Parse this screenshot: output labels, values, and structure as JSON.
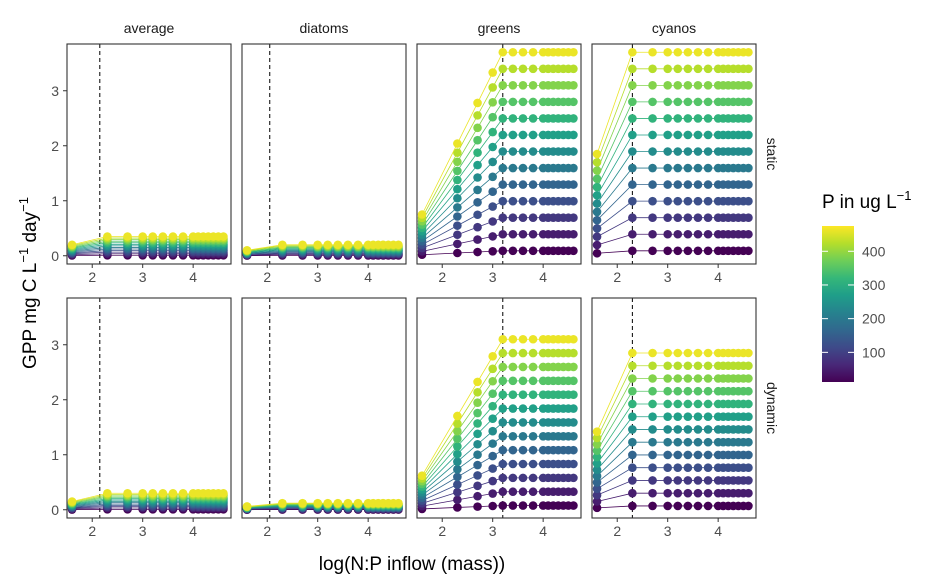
{
  "chart_data": {
    "type": "scatter",
    "xlabel": "log(N:P inflow (mass))",
    "ylabel_parts": [
      "GPP mg C L",
      "−1",
      " day",
      "−1"
    ],
    "columns": [
      "average",
      "diatoms",
      "greens",
      "cyanos"
    ],
    "rows": [
      "static",
      "dynamic"
    ],
    "xlim": [
      1.5,
      4.75
    ],
    "ylim": [
      -0.15,
      3.85
    ],
    "x_ticks": [
      2,
      3,
      4
    ],
    "y_ticks": [
      0,
      1,
      2,
      3
    ],
    "x_values": [
      1.6,
      2.3,
      2.7,
      3.0,
      3.2,
      3.4,
      3.6,
      3.8,
      4.0,
      4.1,
      4.2,
      4.3,
      4.4,
      4.5,
      4.6
    ],
    "p_levels": [
      12,
      49,
      87,
      124,
      162,
      199,
      237,
      274,
      312,
      349,
      387,
      424,
      462
    ],
    "vlines": {
      "average": 2.15,
      "diatoms": 2.05,
      "greens": 3.2,
      "cyanos": 2.3
    },
    "panels": [
      {
        "column": "average",
        "row": "static",
        "kind": "flat",
        "plateau_max": 0.35,
        "start_max": 0.2,
        "knee": 2.3
      },
      {
        "column": "diatoms",
        "row": "static",
        "kind": "flat",
        "plateau_max": 0.2,
        "start_max": 0.1,
        "knee": 2.3
      },
      {
        "column": "greens",
        "row": "static",
        "kind": "rise",
        "plateau_max": 3.7,
        "start_max": 0.75,
        "knee": 3.2
      },
      {
        "column": "cyanos",
        "row": "static",
        "kind": "rise",
        "plateau_max": 3.7,
        "start_max": 1.85,
        "knee": 2.3
      },
      {
        "column": "average",
        "row": "dynamic",
        "kind": "flat",
        "plateau_max": 0.3,
        "start_max": 0.15,
        "knee": 2.3
      },
      {
        "column": "diatoms",
        "row": "dynamic",
        "kind": "flat",
        "plateau_max": 0.12,
        "start_max": 0.06,
        "knee": 2.3
      },
      {
        "column": "greens",
        "row": "dynamic",
        "kind": "rise",
        "plateau_max": 3.1,
        "start_max": 0.62,
        "knee": 3.2
      },
      {
        "column": "cyanos",
        "row": "dynamic",
        "kind": "rise",
        "plateau_max": 2.85,
        "start_max": 1.42,
        "knee": 2.3
      }
    ],
    "legend": {
      "title_parts": [
        "P in ug L",
        "−1"
      ],
      "position": "right",
      "range": [
        12,
        475
      ],
      "ticks": [
        100,
        200,
        300,
        400
      ],
      "colors": [
        "#440154",
        "#482878",
        "#3e4a89",
        "#31688e",
        "#26828e",
        "#1f9e89",
        "#35b779",
        "#6ece58",
        "#b5de2b",
        "#fde725"
      ]
    }
  }
}
